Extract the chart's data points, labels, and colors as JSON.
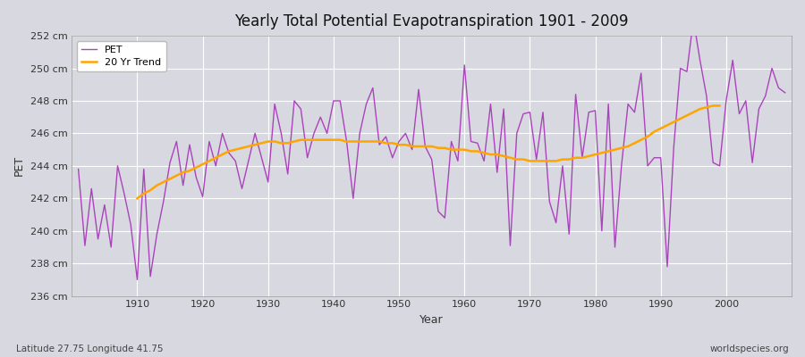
{
  "title": "Yearly Total Potential Evapotranspiration 1901 - 2009",
  "xlabel": "Year",
  "ylabel": "PET",
  "subtitle_left": "Latitude 27.75 Longitude 41.75",
  "subtitle_right": "worldspecies.org",
  "pet_color": "#AA44BB",
  "trend_color": "#FFA500",
  "background_color": "#D8D8E0",
  "plot_bg_color": "#D8D8E0",
  "grid_color": "#FFFFFF",
  "ylim": [
    236,
    252
  ],
  "yticks": [
    236,
    238,
    240,
    242,
    244,
    246,
    248,
    250,
    252
  ],
  "xlim": [
    1900,
    2010
  ],
  "xticks": [
    1910,
    1920,
    1930,
    1940,
    1950,
    1960,
    1970,
    1980,
    1990,
    2000
  ],
  "years": [
    1901,
    1902,
    1903,
    1904,
    1905,
    1906,
    1907,
    1908,
    1909,
    1910,
    1911,
    1912,
    1913,
    1914,
    1915,
    1916,
    1917,
    1918,
    1919,
    1920,
    1921,
    1922,
    1923,
    1924,
    1925,
    1926,
    1927,
    1928,
    1929,
    1930,
    1931,
    1932,
    1933,
    1934,
    1935,
    1936,
    1937,
    1938,
    1939,
    1940,
    1941,
    1942,
    1943,
    1944,
    1945,
    1946,
    1947,
    1948,
    1949,
    1950,
    1951,
    1952,
    1953,
    1954,
    1955,
    1956,
    1957,
    1958,
    1959,
    1960,
    1961,
    1962,
    1963,
    1964,
    1965,
    1966,
    1967,
    1968,
    1969,
    1970,
    1971,
    1972,
    1973,
    1974,
    1975,
    1976,
    1977,
    1978,
    1979,
    1980,
    1981,
    1982,
    1983,
    1984,
    1985,
    1986,
    1987,
    1988,
    1989,
    1990,
    1991,
    1992,
    1993,
    1994,
    1995,
    1996,
    1997,
    1998,
    1999,
    2000,
    2001,
    2002,
    2003,
    2004,
    2005,
    2006,
    2007,
    2008,
    2009
  ],
  "pet_values": [
    243.8,
    239.1,
    242.6,
    239.5,
    241.6,
    239.0,
    244.0,
    242.3,
    240.4,
    237.0,
    243.8,
    237.2,
    239.8,
    241.8,
    244.2,
    245.5,
    242.8,
    245.3,
    243.3,
    242.1,
    245.5,
    244.0,
    246.0,
    244.8,
    244.3,
    242.6,
    244.3,
    246.0,
    244.5,
    243.0,
    247.8,
    246.0,
    243.5,
    248.0,
    247.5,
    244.5,
    246.0,
    247.0,
    246.0,
    248.0,
    248.0,
    245.5,
    242.0,
    246.0,
    247.8,
    248.8,
    245.3,
    245.8,
    244.5,
    245.5,
    246.0,
    245.0,
    248.7,
    245.2,
    244.4,
    241.2,
    240.8,
    245.5,
    244.3,
    250.2,
    245.5,
    245.4,
    244.3,
    247.8,
    243.6,
    247.5,
    239.1,
    246.0,
    247.2,
    247.3,
    244.4,
    247.3,
    241.8,
    240.5,
    244.0,
    239.8,
    248.4,
    244.5,
    247.3,
    247.4,
    240.0,
    247.8,
    239.0,
    244.0,
    247.8,
    247.3,
    249.7,
    244.0,
    244.5,
    244.5,
    237.8,
    245.2,
    250.0,
    249.8,
    253.0,
    250.5,
    248.3,
    244.2,
    244.0,
    248.0,
    250.5,
    247.2,
    248.0,
    244.2,
    247.5,
    248.3,
    250.0,
    248.8,
    248.5
  ],
  "trend_values": [
    null,
    null,
    null,
    null,
    null,
    null,
    null,
    null,
    null,
    242.0,
    242.3,
    242.5,
    242.8,
    243.0,
    243.2,
    243.4,
    243.6,
    243.7,
    243.9,
    244.1,
    244.3,
    244.5,
    244.7,
    244.9,
    245.0,
    245.1,
    245.2,
    245.3,
    245.4,
    245.5,
    245.5,
    245.4,
    245.4,
    245.5,
    245.6,
    245.6,
    245.6,
    245.6,
    245.6,
    245.6,
    245.6,
    245.5,
    245.5,
    245.5,
    245.5,
    245.5,
    245.5,
    245.4,
    245.4,
    245.3,
    245.3,
    245.2,
    245.2,
    245.2,
    245.2,
    245.1,
    245.1,
    245.0,
    245.0,
    245.0,
    244.9,
    244.9,
    244.8,
    244.7,
    244.7,
    244.6,
    244.5,
    244.4,
    244.4,
    244.3,
    244.3,
    244.3,
    244.3,
    244.3,
    244.4,
    244.4,
    244.5,
    244.5,
    244.6,
    244.7,
    244.8,
    244.9,
    245.0,
    245.1,
    245.2,
    245.4,
    245.6,
    245.8,
    246.1,
    246.3,
    246.5,
    246.7,
    246.9,
    247.1,
    247.3,
    247.5,
    247.6,
    247.7,
    247.7
  ],
  "legend_pet_label": "PET",
  "legend_trend_label": "20 Yr Trend"
}
